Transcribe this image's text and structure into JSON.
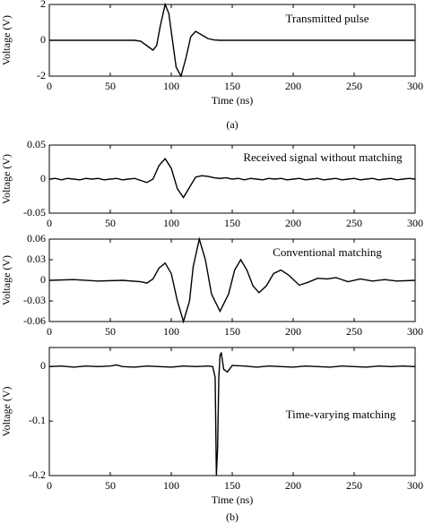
{
  "chart_data": [
    {
      "type": "line",
      "annotation": "Transmitted pulse",
      "xlabel": "Time (ns)",
      "ylabel": "Voltage (V)",
      "xlim": [
        0,
        300
      ],
      "ylim": [
        -2,
        2
      ],
      "xticks": [
        0,
        50,
        100,
        150,
        200,
        250,
        300
      ],
      "yticks": [
        -2,
        0,
        2
      ],
      "color": "#000000",
      "x": [
        0,
        70,
        75,
        80,
        85,
        88,
        91,
        95,
        98,
        101,
        104,
        108,
        112,
        116,
        120,
        125,
        130,
        135,
        140,
        300
      ],
      "values": [
        0,
        0,
        -0.05,
        -0.3,
        -0.55,
        -0.3,
        0.8,
        2,
        1.5,
        0,
        -1.5,
        -2,
        -1,
        0.2,
        0.5,
        0.3,
        0.1,
        0.02,
        0,
        0
      ]
    },
    {
      "type": "line",
      "annotation": "Received signal without matching",
      "ylabel": "Voltage (V)",
      "xlim": [
        0,
        300
      ],
      "ylim": [
        -0.05,
        0.05
      ],
      "xticks": [
        0,
        50,
        100,
        150,
        200,
        250,
        300
      ],
      "yticks": [
        -0.05,
        0,
        0.05
      ],
      "color": "#000000",
      "x": [
        0,
        5,
        10,
        15,
        20,
        25,
        30,
        35,
        40,
        45,
        50,
        55,
        60,
        65,
        70,
        75,
        80,
        85,
        90,
        95,
        100,
        105,
        110,
        115,
        120,
        125,
        130,
        135,
        140,
        145,
        150,
        155,
        160,
        165,
        170,
        175,
        180,
        185,
        190,
        195,
        200,
        205,
        210,
        215,
        220,
        225,
        230,
        235,
        240,
        245,
        250,
        255,
        260,
        265,
        270,
        275,
        280,
        285,
        290,
        295,
        300
      ],
      "values": [
        0,
        0.001,
        -0.001,
        0.001,
        0,
        -0.001,
        0.001,
        0,
        0.001,
        -0.001,
        0,
        0.001,
        -0.001,
        0,
        0.001,
        -0.002,
        -0.005,
        0,
        0.02,
        0.03,
        0.016,
        -0.014,
        -0.027,
        -0.012,
        0.003,
        0.005,
        0.004,
        0.002,
        0.001,
        0.002,
        0,
        0.001,
        -0.001,
        0.001,
        0,
        -0.001,
        0.001,
        0,
        0.001,
        -0.001,
        0,
        0.001,
        -0.001,
        0,
        0.001,
        -0.001,
        0,
        0.001,
        -0.001,
        0,
        0.001,
        -0.001,
        0,
        0.001,
        -0.001,
        0,
        0.001,
        -0.001,
        0,
        0.001,
        0
      ]
    },
    {
      "type": "line",
      "annotation": "Conventional matching",
      "ylabel": "Voltage (V)",
      "xlim": [
        0,
        300
      ],
      "ylim": [
        -0.06,
        0.06
      ],
      "xticks": [
        0,
        50,
        100,
        150,
        200,
        250,
        300
      ],
      "yticks": [
        -0.06,
        -0.03,
        0,
        0.03,
        0.06
      ],
      "color": "#000000",
      "x": [
        0,
        20,
        40,
        60,
        75,
        80,
        85,
        90,
        95,
        100,
        105,
        110,
        115,
        118,
        123,
        128,
        133,
        140,
        147,
        152,
        157,
        162,
        167,
        172,
        178,
        184,
        190,
        196,
        205,
        212,
        220,
        228,
        235,
        245,
        255,
        265,
        275,
        285,
        300
      ],
      "values": [
        0,
        0.001,
        -0.001,
        0,
        -0.002,
        -0.004,
        0.002,
        0.018,
        0.025,
        0.01,
        -0.03,
        -0.06,
        -0.03,
        0.02,
        0.06,
        0.03,
        -0.02,
        -0.045,
        -0.02,
        0.015,
        0.03,
        0.015,
        -0.008,
        -0.018,
        -0.008,
        0.01,
        0.015,
        0.008,
        -0.007,
        -0.003,
        0.003,
        0.002,
        0.004,
        -0.002,
        0.002,
        -0.001,
        0.001,
        -0.001,
        0
      ]
    },
    {
      "type": "line",
      "annotation": "Time-varying matching",
      "xlabel": "Time (ns)",
      "ylabel": "Voltage (V)",
      "xlim": [
        0,
        300
      ],
      "ylim": [
        -0.2,
        0.035
      ],
      "xticks": [
        0,
        50,
        100,
        150,
        200,
        250,
        300
      ],
      "yticks": [
        -0.2,
        -0.1,
        0
      ],
      "color": "#000000",
      "x": [
        0,
        10,
        20,
        30,
        40,
        50,
        55,
        60,
        70,
        80,
        90,
        100,
        110,
        120,
        130,
        134,
        136,
        137,
        138,
        139,
        140,
        141,
        143,
        146,
        150,
        160,
        170,
        180,
        190,
        200,
        210,
        220,
        230,
        240,
        250,
        260,
        270,
        280,
        290,
        300
      ],
      "values": [
        0,
        0.001,
        -0.001,
        0.001,
        0,
        0.001,
        0.003,
        0,
        -0.001,
        0.001,
        0,
        -0.001,
        0.001,
        0,
        0.001,
        0,
        -0.02,
        -0.2,
        -0.15,
        -0.02,
        0.02,
        0.026,
        -0.005,
        -0.01,
        0.002,
        0.001,
        -0.001,
        0.001,
        0,
        -0.001,
        0.001,
        0,
        -0.001,
        0.001,
        0,
        -0.001,
        0.001,
        0,
        0.001,
        0
      ]
    }
  ],
  "captions": [
    "(a)",
    "(b)"
  ]
}
